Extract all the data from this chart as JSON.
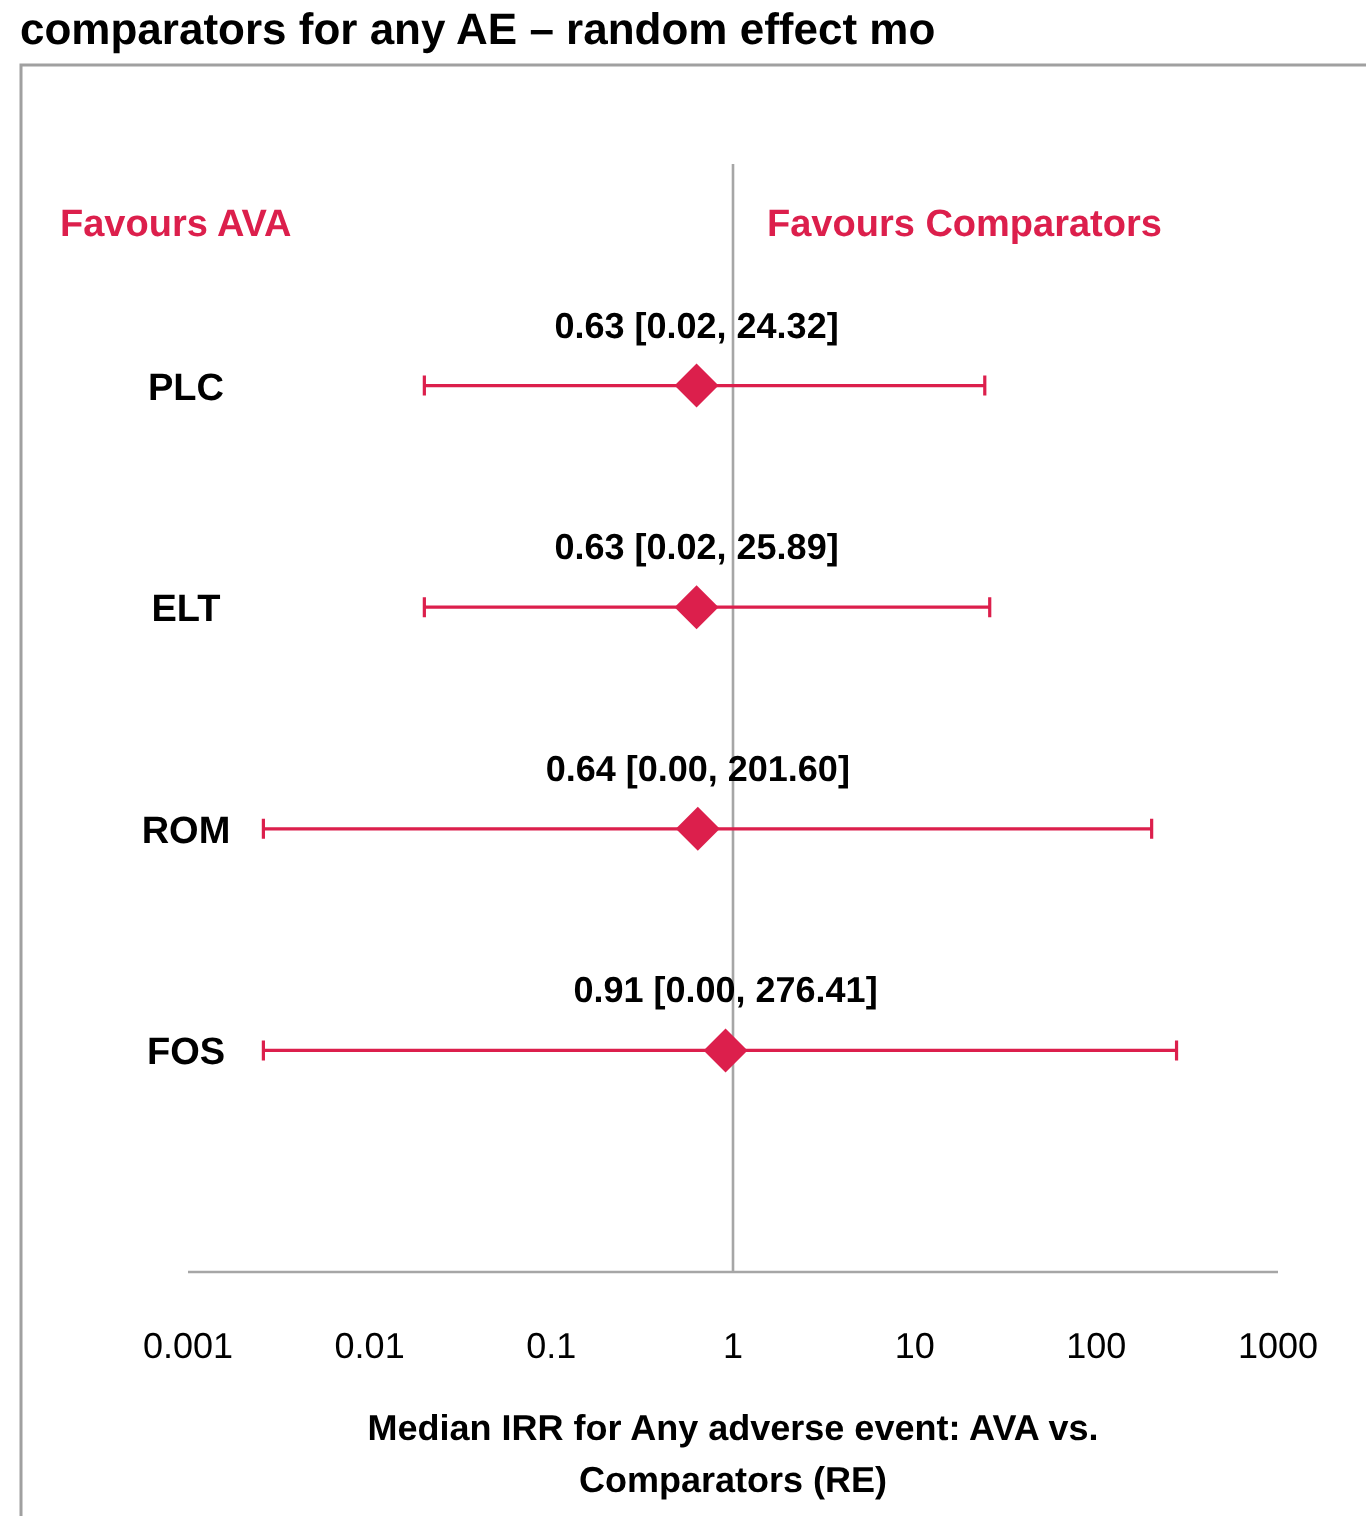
{
  "chart_data": {
    "type": "scatter",
    "title": "comparators for any AE – random effect mo",
    "xlabel": "Median IRR for Any adverse event: AVA vs. Comparators (RE)",
    "annotations": [
      "Favours AVA",
      "Favours Comparators"
    ],
    "orientation": "horizontal",
    "categories": [
      "PLC",
      "ELT",
      "ROM",
      "FOS"
    ],
    "values": [
      0.63,
      0.63,
      0.64,
      0.91
    ],
    "errors": [
      [
        0.02,
        24.32
      ],
      [
        0.02,
        25.89
      ],
      [
        0.0026,
        201.6
      ],
      [
        0.0026,
        276.41
      ]
    ],
    "value_labels": [
      "0.63 [0.02, 24.32]",
      "0.63 [0.02, 25.89]",
      "0.64 [0.00, 201.60]",
      "0.91 [0.00, 276.41]"
    ],
    "color": "#dc1f4c",
    "marker": "diamond",
    "log": "x",
    "xlim": [
      0.001,
      1000
    ],
    "xticks": [
      0.001,
      0.01,
      0.1,
      1,
      10,
      100,
      1000
    ],
    "ref_lines": [
      {
        "axis": "x",
        "value": 1,
        "color": "#a6a6a6"
      }
    ]
  }
}
